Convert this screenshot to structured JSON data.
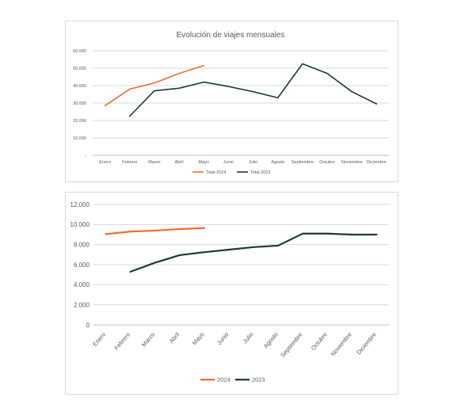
{
  "chart_data": [
    {
      "type": "line",
      "title": "Evolución de viajes mensuales",
      "categories": [
        "Enero",
        "Febrero",
        "Marzo",
        "Abril",
        "Mayo",
        "Junio",
        "Julio",
        "Agosto",
        "Septiembre",
        "Octubre",
        "Noviembre",
        "Diciembre"
      ],
      "y_ticks": [
        "-",
        "10.000",
        "20.000",
        "30.000",
        "40.000",
        "50.000",
        "60.000"
      ],
      "ylim": [
        0,
        60000
      ],
      "grid": true,
      "legend_position": "bottom",
      "series": [
        {
          "name": "Total 2024",
          "color": "#F26B2A",
          "values": [
            28500,
            38000,
            41500,
            47000,
            51500,
            null,
            null,
            null,
            null,
            null,
            null,
            null
          ]
        },
        {
          "name": "Total 2023",
          "color": "#1E3A2F",
          "values": [
            null,
            22500,
            37000,
            38500,
            42000,
            39500,
            36500,
            33000,
            52500,
            47000,
            36500,
            29500
          ]
        }
      ]
    },
    {
      "type": "line",
      "title": "",
      "categories": [
        "Enero",
        "Febrero",
        "Marzo",
        "Abril",
        "Mayo",
        "Junio",
        "Julio",
        "Agosto",
        "Septiembre",
        "Octubre",
        "Noviembre",
        "Diciembre"
      ],
      "y_ticks": [
        "0",
        "2.000",
        "4.000",
        "6.000",
        "8.000",
        "10.000",
        "12.000"
      ],
      "ylim": [
        0,
        12000
      ],
      "grid": true,
      "legend_position": "bottom",
      "series": [
        {
          "name": "2024",
          "color": "#F26B2A",
          "values": [
            9050,
            9300,
            9400,
            9550,
            9650,
            null,
            null,
            null,
            null,
            null,
            null,
            null
          ]
        },
        {
          "name": "2023",
          "color": "#1E3A2F",
          "values": [
            null,
            5300,
            6200,
            6950,
            7250,
            7500,
            7750,
            7900,
            9100,
            9100,
            9000,
            9000
          ]
        }
      ]
    }
  ]
}
